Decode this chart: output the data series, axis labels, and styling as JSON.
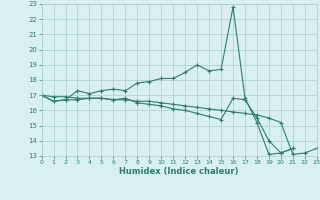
{
  "xlabel": "Humidex (Indice chaleur)",
  "x": [
    0,
    1,
    2,
    3,
    4,
    5,
    6,
    7,
    8,
    9,
    10,
    11,
    12,
    13,
    14,
    15,
    16,
    17,
    18,
    19,
    20,
    21,
    22,
    23
  ],
  "line1": [
    17.0,
    16.6,
    16.7,
    17.3,
    17.1,
    17.3,
    17.4,
    17.3,
    17.8,
    17.9,
    18.1,
    18.1,
    18.5,
    19.0,
    18.6,
    18.7,
    22.8,
    16.8,
    15.2,
    13.1,
    13.2,
    13.5,
    null,
    null
  ],
  "line2": [
    17.0,
    16.6,
    16.7,
    16.7,
    16.8,
    16.8,
    16.7,
    16.8,
    16.5,
    16.4,
    16.3,
    16.1,
    16.0,
    15.8,
    15.6,
    15.4,
    16.8,
    16.7,
    15.5,
    14.0,
    13.2,
    13.5,
    null,
    null
  ],
  "line3": [
    17.0,
    16.9,
    16.9,
    16.8,
    16.8,
    16.8,
    16.7,
    16.7,
    16.6,
    16.6,
    16.5,
    16.4,
    16.3,
    16.2,
    16.1,
    16.0,
    15.9,
    15.8,
    15.7,
    15.5,
    15.2,
    13.1,
    13.2,
    13.5
  ],
  "xlim": [
    0,
    23
  ],
  "ylim": [
    13,
    23
  ],
  "yticks": [
    13,
    14,
    15,
    16,
    17,
    18,
    19,
    20,
    21,
    22,
    23
  ],
  "xticks": [
    0,
    1,
    2,
    3,
    4,
    5,
    6,
    7,
    8,
    9,
    10,
    11,
    12,
    13,
    14,
    15,
    16,
    17,
    18,
    19,
    20,
    21,
    22,
    23
  ],
  "line_color": "#2e7d6e",
  "bg_color": "#d8f0ef",
  "grid_color": "#aacfcc",
  "marker": "+"
}
